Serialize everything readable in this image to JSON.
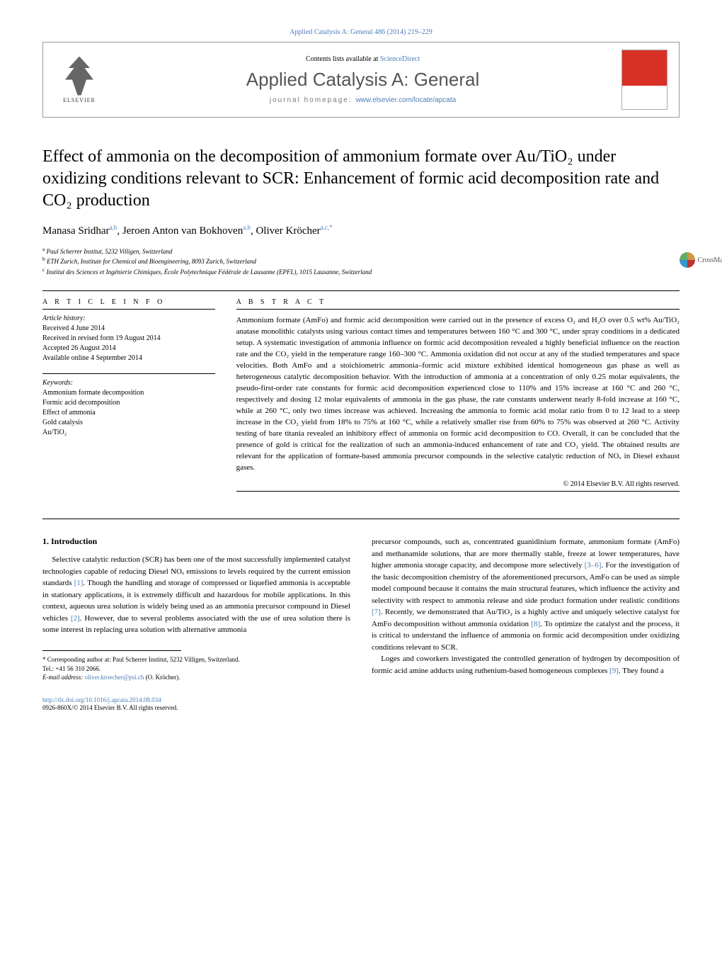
{
  "topLink": "Applied Catalysis A: General 486 (2014) 219–229",
  "header": {
    "contentsPre": "Contents lists available at ",
    "contentsLink": "ScienceDirect",
    "journalTitle": "Applied Catalysis A: General",
    "homepagePre": "journal homepage: ",
    "homepageLink": "www.elsevier.com/locate/apcata",
    "elsevierLabel": "ELSEVIER"
  },
  "crossmark": "CrossMark",
  "title": "Effect of ammonia on the decomposition of ammonium formate over Au/TiO₂ under oxidizing conditions relevant to SCR: Enhancement of formic acid decomposition rate and CO₂ production",
  "authors": {
    "a1": "Manasa Sridhar",
    "a1sup": "a,b",
    "a2": "Jeroen Anton van Bokhoven",
    "a2sup": "a,b",
    "a3": "Oliver Kröcher",
    "a3sup": "a,c,",
    "star": "*"
  },
  "affiliations": {
    "a": "Paul Scherrer Institut, 5232 Villigen, Switzerland",
    "b": "ETH Zurich, Institute for Chemical and Bioengineering, 8093 Zurich, Switzerland",
    "c": "Institut des Sciences et Ingénierie Chimiques, École Polytechnique Fédérale de Lausanne (EPFL), 1015 Lausanne, Switzerland"
  },
  "info": {
    "head": "A R T I C L E   I N F O",
    "historyLabel": "Article history:",
    "received": "Received 4 June 2014",
    "revised": "Received in revised form 19 August 2014",
    "accepted": "Accepted 26 August 2014",
    "online": "Available online 4 September 2014",
    "keywordsLabel": "Keywords:",
    "k1": "Ammonium formate decomposition",
    "k2": "Formic acid decomposition",
    "k3": "Effect of ammonia",
    "k4": "Gold catalysis",
    "k5": "Au/TiO₂"
  },
  "abstract": {
    "head": "A B S T R A C T",
    "text": "Ammonium formate (AmFo) and formic acid decomposition were carried out in the presence of excess O₂ and H₂O over 0.5 wt% Au/TiO₂ anatase monolithic catalysts using various contact times and temperatures between 160 °C and 300 °C, under spray conditions in a dedicated setup. A systematic investigation of ammonia influence on formic acid decomposition revealed a highly beneficial influence on the reaction rate and the CO₂ yield in the temperature range 160–300 °C. Ammonia oxidation did not occur at any of the studied temperatures and space velocities. Both AmFo and a stoichiometric ammonia–formic acid mixture exhibited identical homogeneous gas phase as well as heterogeneous catalytic decomposition behavior. With the introduction of ammonia at a concentration of only 0.25 molar equivalents, the pseudo-first-order rate constants for formic acid decomposition experienced close to 110% and 15% increase at 160 °C and 260 °C, respectively and dosing 12 molar equivalents of ammonia in the gas phase, the rate constants underwent nearly 8-fold increase at 160 °C, while at 260 °C, only two times increase was achieved. Increasing the ammonia to formic acid molar ratio from 0 to 12 lead to a steep increase in the CO₂ yield from 18% to 75% at 160 °C, while a relatively smaller rise from 60% to 75% was observed at 260 °C. Activity testing of bare titania revealed an inhibitory effect of ammonia on formic acid decomposition to CO. Overall, it can be concluded that the presence of gold is critical for the realization of such an ammonia-induced enhancement of rate and CO₂ yield. The obtained results are relevant for the application of formate-based ammonia precursor compounds in the selective catalytic reduction of NOₓ in Diesel exhaust gases.",
    "copyright": "© 2014 Elsevier B.V. All rights reserved."
  },
  "body": {
    "introHead": "1.  Introduction",
    "left": {
      "p1a": "Selective catalytic reduction (SCR) has been one of the most successfully implemented catalyst technologies capable of reducing Diesel NOₓ emissions to levels required by the current emission standards ",
      "p1ref1": "[1]",
      "p1b": ". Though the handling and storage of compressed or liquefied ammonia is acceptable in stationary applications, it is extremely difficult and hazardous for mobile applications. In this context, aqueous urea solution is widely being used as an ammonia precursor compound in Diesel vehicles ",
      "p1ref2": "[2]",
      "p1c": ". However, due to several problems associated with the use of urea solution there is some interest in replacing urea solution with alternative ammonia"
    },
    "right": {
      "p1a": "precursor compounds, such as, concentrated guanidinium formate, ammonium formate (AmFo) and methanamide solutions, that are more thermally stable, freeze at lower temperatures, have higher ammonia storage capacity, and decompose more selectively ",
      "p1ref36": "[3–6]",
      "p1b": ". For the investigation of the basic decomposition chemistry of the aforementioned precursors, AmFo can be used as simple model compound because it contains the main structural features, which influence the activity and selectivity with respect to ammonia release and side product formation under realistic conditions ",
      "p1ref7": "[7]",
      "p1c": ". Recently, we demonstrated that Au/TiO₂ is a highly active and uniquely selective catalyst for AmFo decomposition without ammonia oxidation ",
      "p1ref8": "[8]",
      "p1d": ". To optimize the catalyst and the process, it is critical to understand the influence of ammonia on formic acid decomposition under oxidizing conditions relevant to SCR.",
      "p2a": "Loges and coworkers investigated the controlled generation of hydrogen by decomposition of formic acid amine adducts using ruthenium-based homogeneous complexes ",
      "p2ref9": "[9]",
      "p2b": ". They found a"
    }
  },
  "footnotes": {
    "corrLabel": "* Corresponding author at: Paul Scherrer Institut, 5232 Villigen, Switzerland.",
    "tel": "Tel.: +41 56 310 2066.",
    "emailLabel": "E-mail address: ",
    "email": "oliver.kroecher@psi.ch",
    "emailSuffix": " (O. Kröcher)."
  },
  "doi": {
    "link": "http://dx.doi.org/10.1016/j.apcata.2014.08.034",
    "issn": "0926-860X/© 2014 Elsevier B.V. All rights reserved."
  }
}
